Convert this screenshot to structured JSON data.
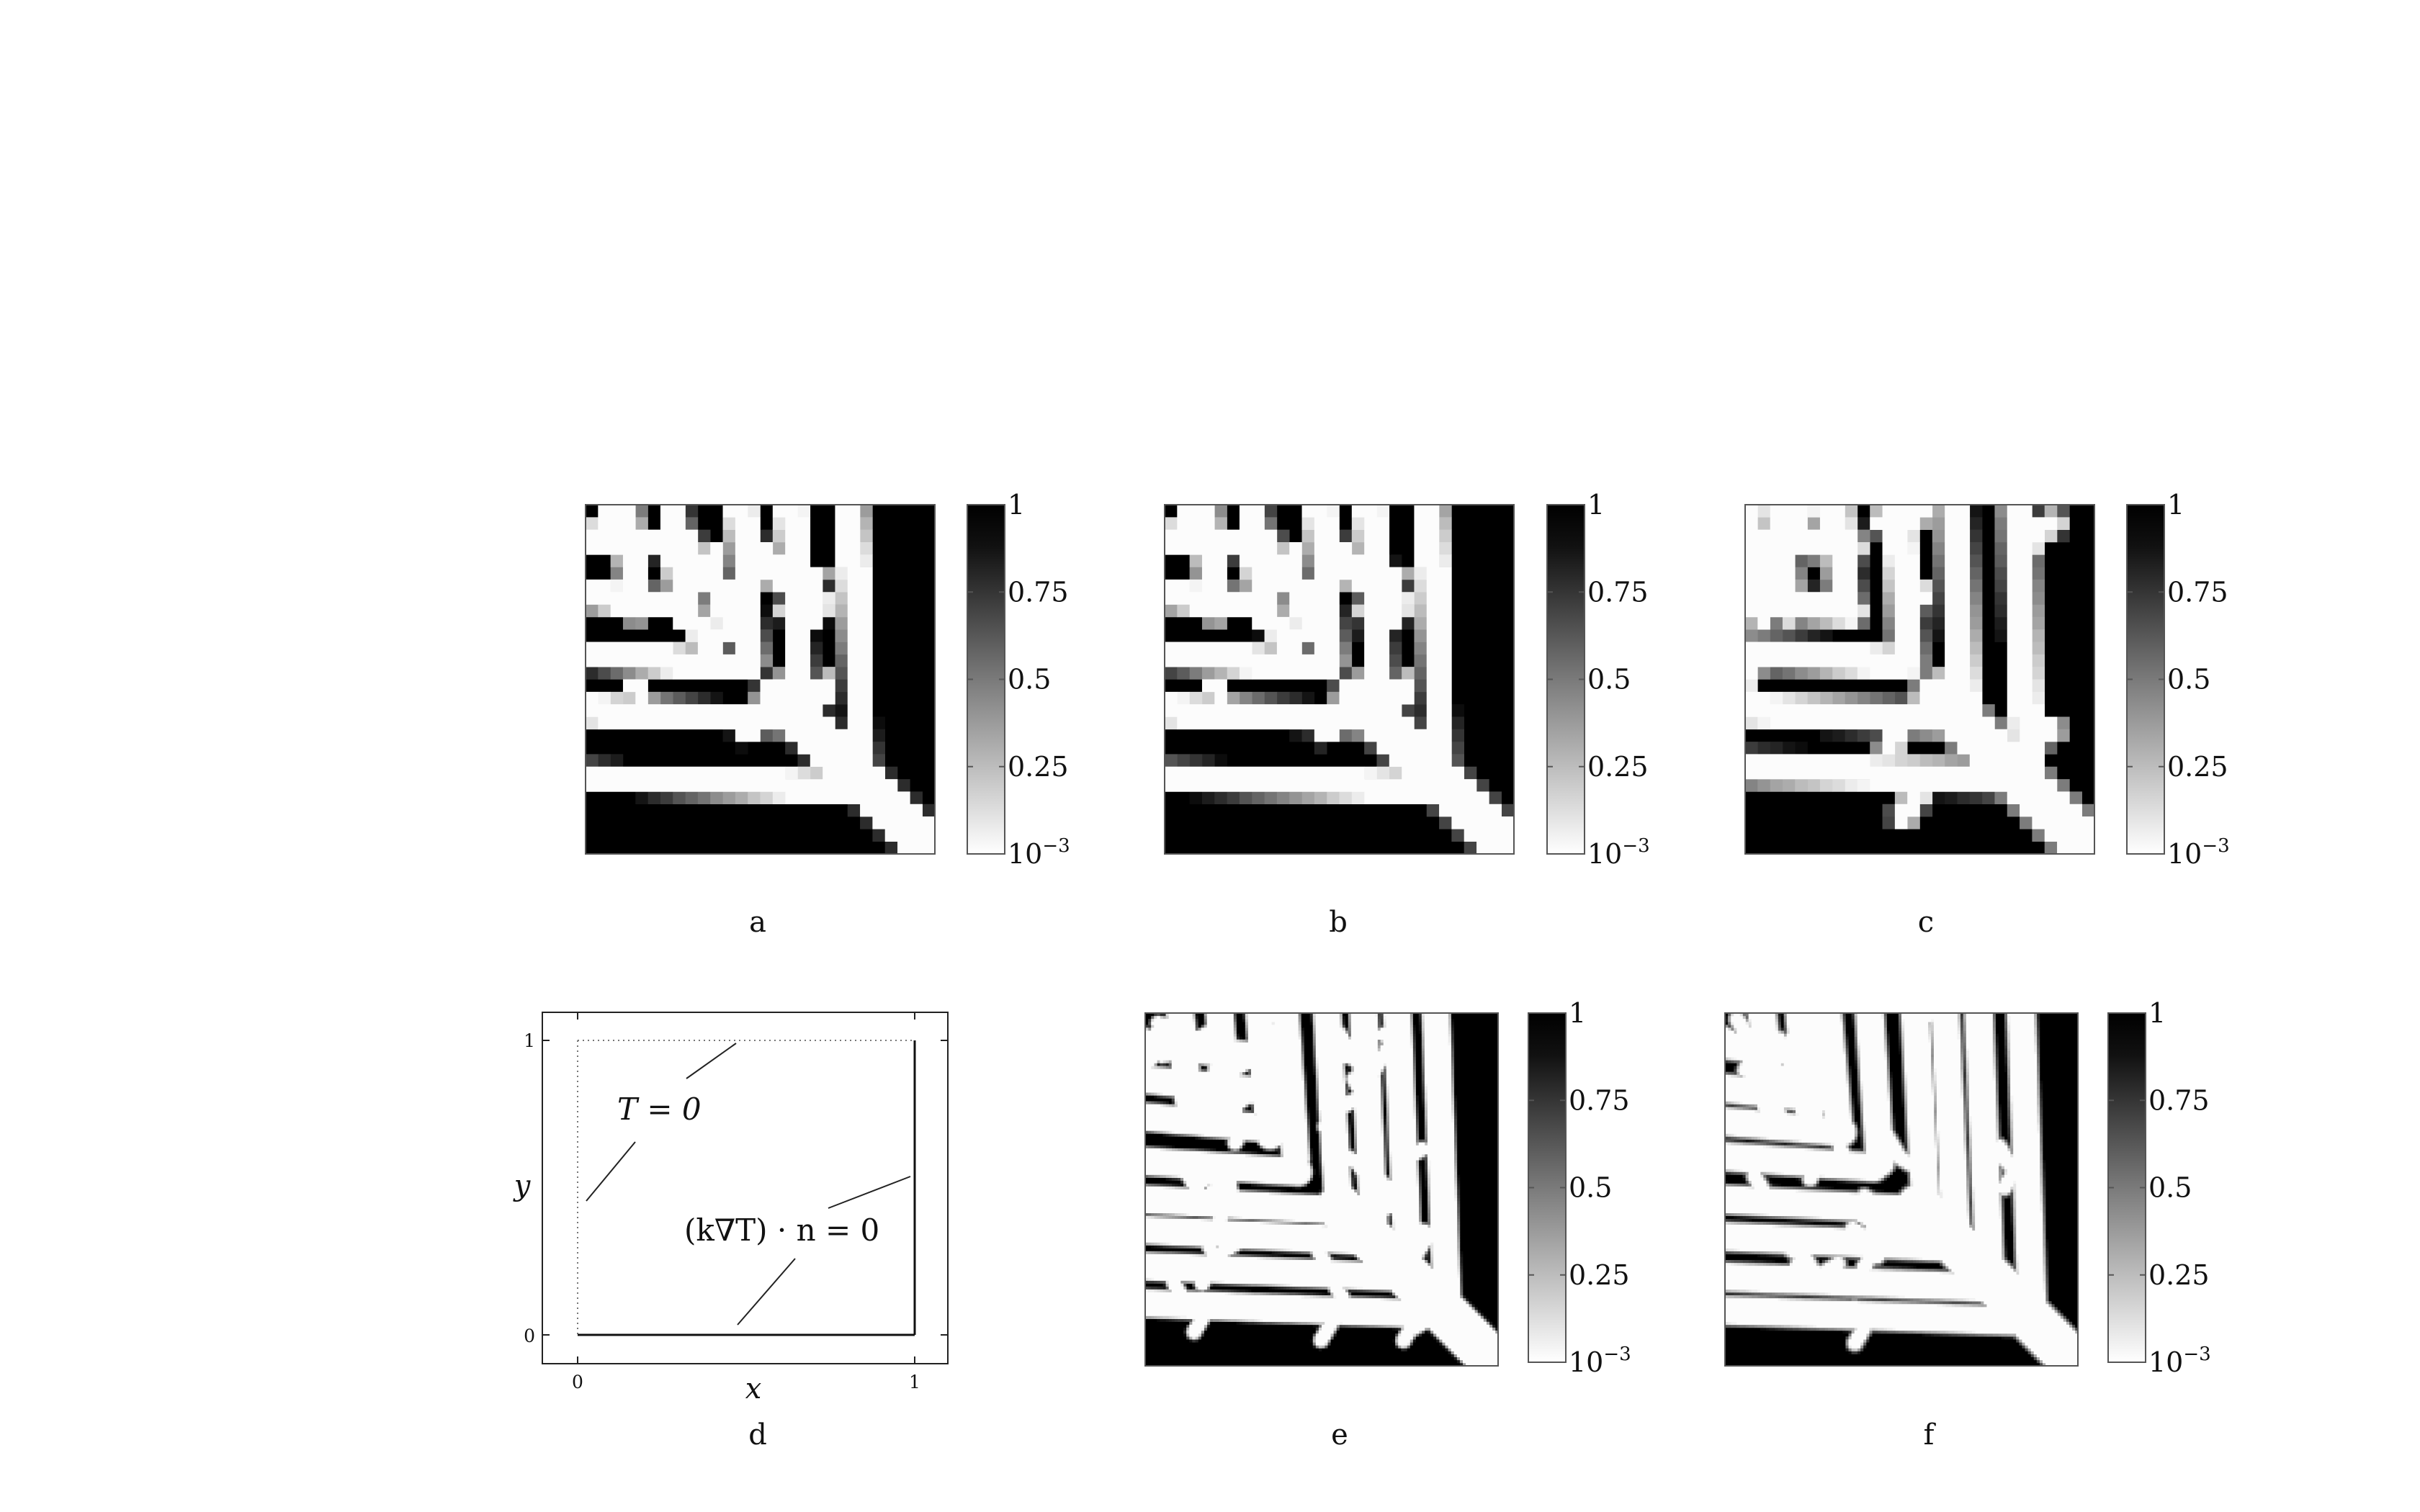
{
  "panels": [
    {
      "id": "a",
      "label": "a",
      "grid": 28,
      "seed": 11,
      "blur": 0.35
    },
    {
      "id": "b",
      "label": "b",
      "grid": 28,
      "seed": 11,
      "blur": 0.45
    },
    {
      "id": "c",
      "label": "c",
      "grid": 28,
      "seed": 37,
      "blur": 0.9
    },
    {
      "id": "e",
      "label": "e",
      "grid": 120,
      "seed": 53,
      "blur": 0.0
    },
    {
      "id": "f",
      "label": "f",
      "grid": 120,
      "seed": 71,
      "blur": 0.15
    }
  ],
  "colorbar": {
    "ticks": [
      {
        "label": "1",
        "value": 1
      },
      {
        "label": "0.75",
        "value": 0.75
      },
      {
        "label": "0.5",
        "value": 0.5
      },
      {
        "label": "0.25",
        "value": 0.25
      },
      {
        "label": "10",
        "exp": "−3",
        "value": 0
      }
    ],
    "colors": {
      "high": "#000000",
      "low": "#ffffff"
    }
  },
  "panel_d": {
    "label": "d",
    "x_ticks": [
      "0",
      "1"
    ],
    "y_ticks": [
      "0",
      "1"
    ],
    "x_label": "x",
    "y_label": "y",
    "dirichlet_bc": "T = 0",
    "neumann_bc": "(k∇T) · n = 0"
  }
}
